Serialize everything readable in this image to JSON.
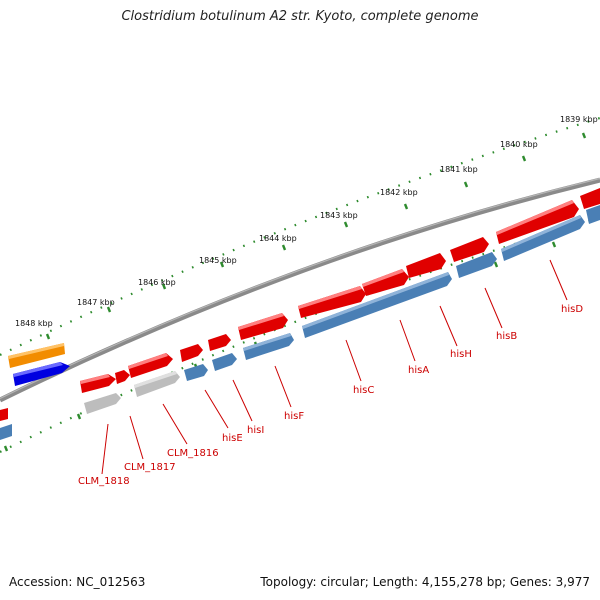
{
  "title": "Clostridium botulinum A2 str. Kyoto, complete genome",
  "footer": {
    "accession": "Accession: NC_012563",
    "topology": "Topology: circular; Length: 4,155,278 bp; Genes: 3,977"
  },
  "colors": {
    "forward_cds": "#e00000",
    "reverse_cds": "#4a7fb5",
    "pseudo": "#bdbdbd",
    "backbone": "#7a7a7a",
    "ticks": "#2e8b2e",
    "orange_feature": "#f28c00",
    "blue_feature": "#0000e0",
    "label": "#cc0000"
  },
  "ruler": {
    "ticks": [
      {
        "label": "1848 kbp"
      },
      {
        "label": "1847 kbp"
      },
      {
        "label": "1846 kbp"
      },
      {
        "label": "1845 kbp"
      },
      {
        "label": "1844 kbp"
      },
      {
        "label": "1843 kbp"
      },
      {
        "label": "1842 kbp"
      },
      {
        "label": "1841 kbp"
      },
      {
        "label": "1840 kbp"
      },
      {
        "label": "1839 kbp"
      }
    ]
  },
  "genes": [
    {
      "name": "CLM_1818"
    },
    {
      "name": "CLM_1817"
    },
    {
      "name": "CLM_1816"
    },
    {
      "name": "hisE"
    },
    {
      "name": "hisI"
    },
    {
      "name": "hisF"
    },
    {
      "name": "hisC"
    },
    {
      "name": "hisA"
    },
    {
      "name": "hisH"
    },
    {
      "name": "hisB"
    },
    {
      "name": "hisD"
    }
  ]
}
